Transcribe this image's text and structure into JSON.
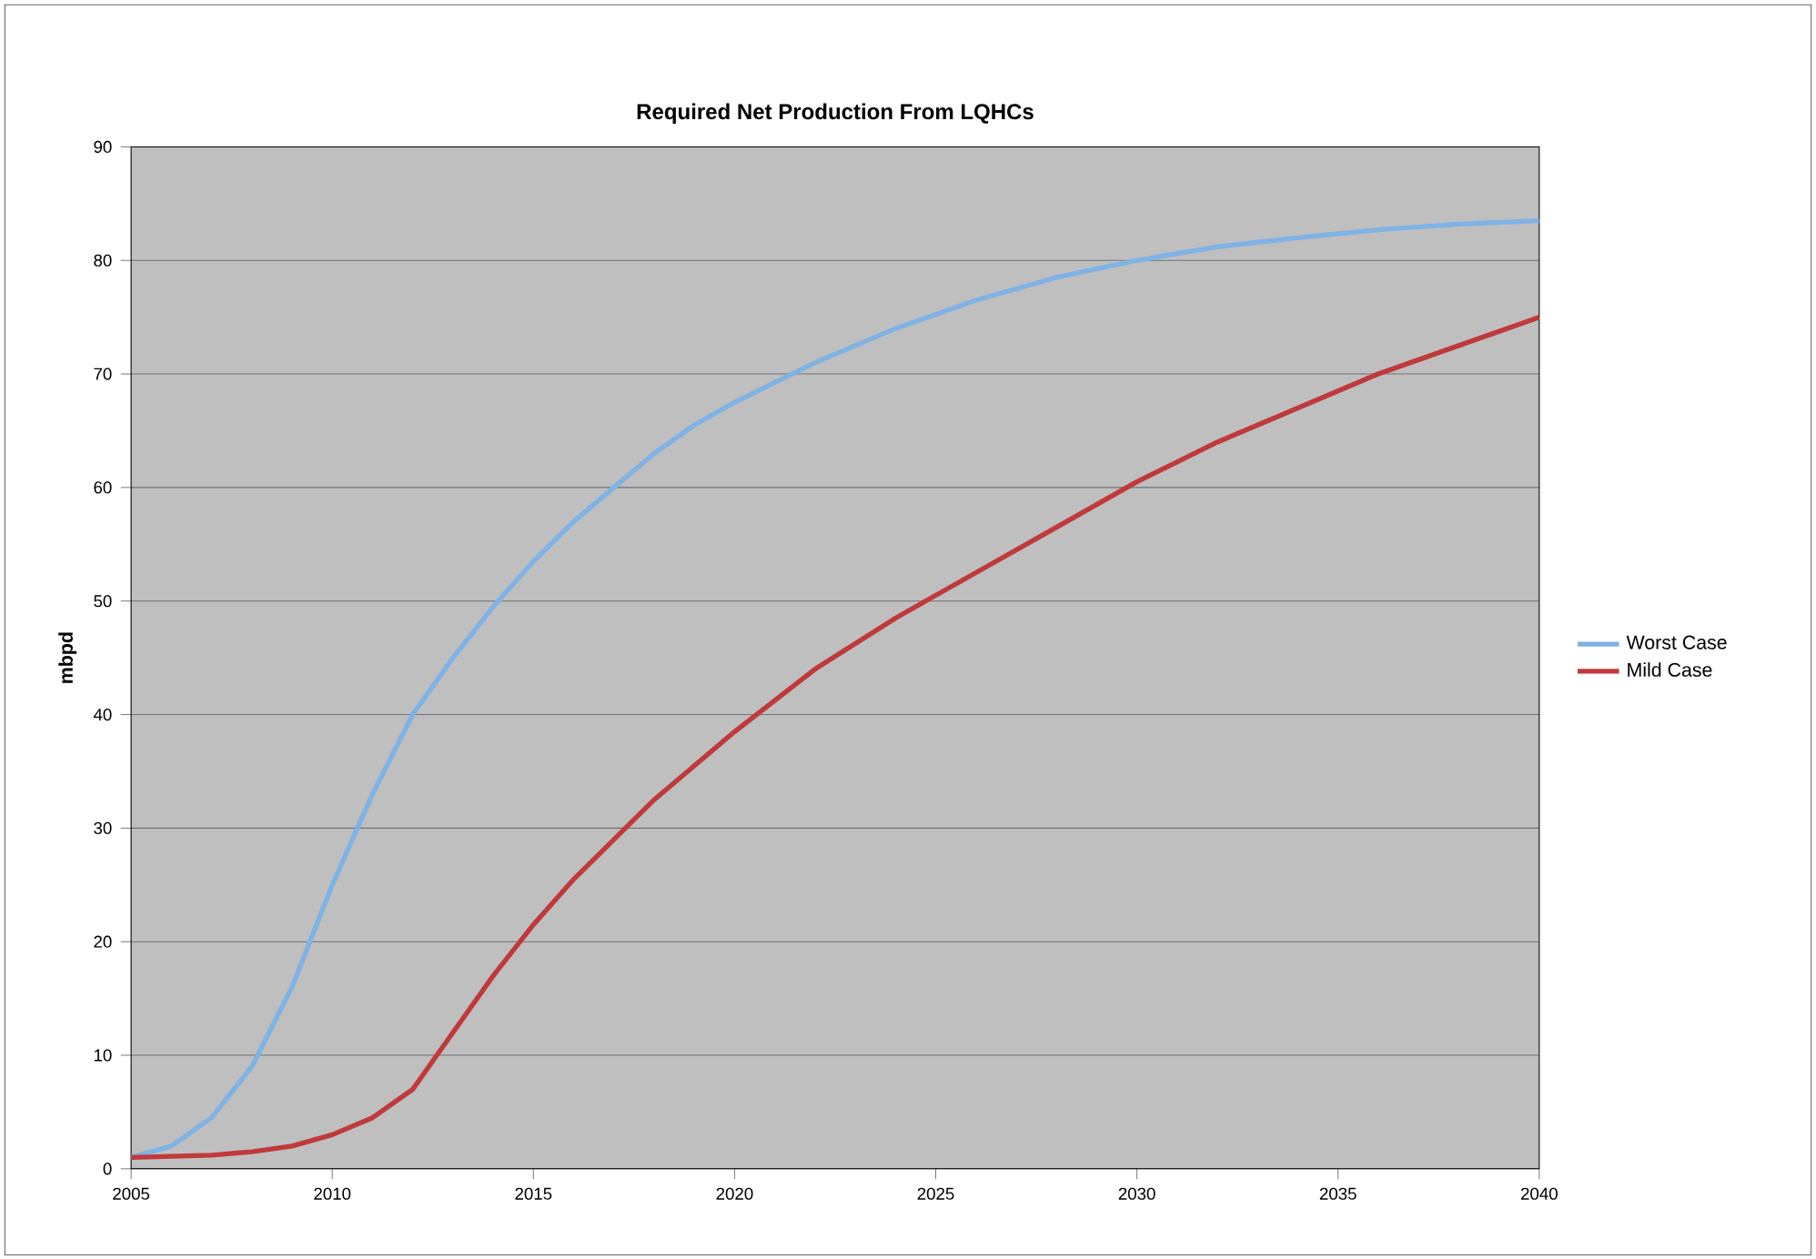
{
  "chart_data": {
    "type": "line",
    "title": "Required Net Production From LQHCs",
    "ylabel": "mbpd",
    "x": [
      2005,
      2006,
      2007,
      2008,
      2009,
      2010,
      2011,
      2012,
      2013,
      2014,
      2015,
      2016,
      2017,
      2018,
      2019,
      2020,
      2022,
      2024,
      2026,
      2028,
      2030,
      2032,
      2034,
      2036,
      2038,
      2040
    ],
    "series": [
      {
        "name": "Worst Case",
        "color": "#7fb2e5",
        "values": [
          1,
          2,
          4.5,
          9,
          16,
          25,
          33,
          40,
          45,
          49.5,
          53.5,
          57,
          60,
          63,
          65.5,
          67.5,
          71,
          74,
          76.5,
          78.5,
          80,
          81.2,
          82,
          82.7,
          83.2,
          83.5
        ]
      },
      {
        "name": "Mild Case",
        "color": "#c0393b",
        "values": [
          1,
          1.1,
          1.2,
          1.5,
          2,
          3,
          4.5,
          7,
          12,
          17,
          21.5,
          25.5,
          29,
          32.5,
          35.5,
          38.5,
          44,
          48.5,
          52.5,
          56.5,
          60.5,
          64,
          67,
          70,
          72.5,
          75
        ]
      }
    ],
    "xlim": [
      2005,
      2040
    ],
    "xticks": [
      2005,
      2010,
      2015,
      2020,
      2025,
      2030,
      2035,
      2040
    ],
    "ylim": [
      0,
      90
    ],
    "yticks": [
      0,
      10,
      20,
      30,
      40,
      50,
      60,
      70,
      80,
      90
    ],
    "grid": "y",
    "legend": "right",
    "marker": "none",
    "line_style": "solid"
  }
}
